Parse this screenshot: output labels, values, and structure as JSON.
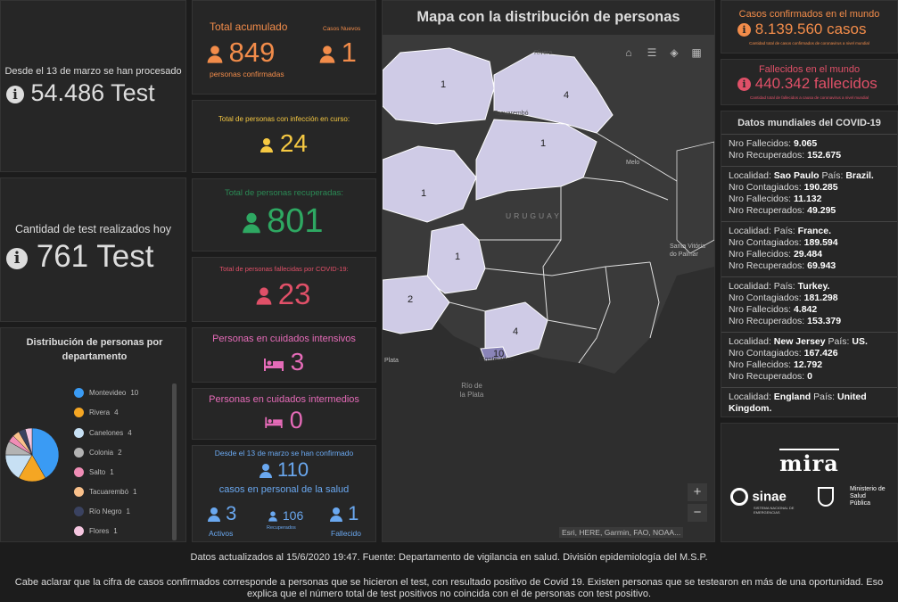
{
  "left": {
    "tests_since_label": "Desde el 13 de marzo se han procesado",
    "tests_since_value": "54.486 Test",
    "tests_today_label": "Cantidad de test realizados hoy",
    "tests_today_value": "761 Test",
    "dist_title": "Distribución de personas por departamento",
    "legend": [
      {
        "name": "Montevideo",
        "value": "10",
        "color": "#3a9bf4"
      },
      {
        "name": "Rivera",
        "value": "4",
        "color": "#f5a623"
      },
      {
        "name": "Canelones",
        "value": "4",
        "color": "#c7e0f4"
      },
      {
        "name": "Colonia",
        "value": "2",
        "color": "#b3b3b3"
      },
      {
        "name": "Salto",
        "value": "1",
        "color": "#f08db6"
      },
      {
        "name": "Tacuarembó",
        "value": "1",
        "color": "#f9c08a"
      },
      {
        "name": "Río Negro",
        "value": "1",
        "color": "#3a4260"
      },
      {
        "name": "Flores",
        "value": "1",
        "color": "#f5c6e0"
      }
    ]
  },
  "stats": {
    "total_label": "Total acumulado",
    "total_value": "849",
    "total_sub": "personas confirmadas",
    "new_label": "Casos Nuevos",
    "new_value": "1",
    "active_label": "Total de personas con infección en curso:",
    "active_value": "24",
    "recovered_label": "Total de personas recuperadas:",
    "recovered_value": "801",
    "deceased_label": "Total de personas fallecidas por COVID-19:",
    "deceased_value": "23",
    "icu_label": "Personas en cuidados intensivos",
    "icu_value": "3",
    "intermediate_label": "Personas en cuidados intermedios",
    "intermediate_value": "0",
    "health_header": "Desde el 13 de marzo se han confirmado",
    "health_value": "110",
    "health_sub": "casos en personal de la salud",
    "health_active_value": "3",
    "health_active_label": "Activos",
    "health_recovered_value": "106",
    "health_recovered_label": "Recuperados",
    "health_deceased_value": "1",
    "health_deceased_label": "Fallecido"
  },
  "map": {
    "title": "Mapa con la distribución de personas",
    "attribution": "Esri, HERE, Garmin, FAO, NOAA...",
    "labels": [
      "1",
      "4",
      "1",
      "1",
      "1",
      "2",
      "4",
      "10"
    ],
    "place_rivera": "Rivera",
    "place_tacuarembo": "Tacuarembó",
    "place_uruguay": "URUGUAY",
    "place_melo": "Melo",
    "place_santa": "Santa Vitória do Palmar",
    "place_montevideo": "Montevideo",
    "place_plata": "Plata",
    "place_rio": "Río de la Plata",
    "zoom_in": "+",
    "zoom_out": "−"
  },
  "world": {
    "confirmed_label": "Casos confirmados en el mundo",
    "confirmed_value": "8.139.560 casos",
    "confirmed_sub": "Cantidad total de casos confirmados de coronavirus a nivel mundial",
    "deaths_label": "Fallecidos en el mundo",
    "deaths_value": "440.342 fallecidos",
    "deaths_sub": "Cantidad total de fallecidos a causa de coronavirus a nivel mundial",
    "list_title": "Datos mundiales del COVID-19",
    "summary_deaths": "9.065",
    "summary_recovered": "152.675",
    "lbl_localidad": "Localidad:",
    "lbl_pais": "País:",
    "lbl_contagiados": "Nro Contagiados:",
    "lbl_fallecidos": "Nro Fallecidos:",
    "lbl_recuperados": "Nro Recuperados:",
    "entries": [
      {
        "loc": "Sao Paulo",
        "country": "Brazil.",
        "infected": "190.285",
        "deaths": "11.132",
        "recovered": "49.295"
      },
      {
        "loc": "",
        "country": "France.",
        "infected": "189.594",
        "deaths": "29.484",
        "recovered": "69.943"
      },
      {
        "loc": "",
        "country": "Turkey.",
        "infected": "181.298",
        "deaths": "4.842",
        "recovered": "153.379"
      },
      {
        "loc": "New Jersey",
        "country": "US.",
        "infected": "167.426",
        "deaths": "12.792",
        "recovered": "0"
      }
    ],
    "last_loc": "England",
    "last_country": "United Kingdom."
  },
  "logos": {
    "mira": "mira",
    "sinae": "sinae",
    "sinae_sub": "SISTEMA NACIONAL DE EMERGENCIAS",
    "msp": "Ministerio de Salud Pública"
  },
  "footer": {
    "update": "Datos actualizados al 15/6/2020 19:47. Fuente: Departamento de vigilancia en salud. División epidemiología del M.S.P.",
    "note": "Cabe aclarar que la cifra de casos confirmados corresponde a personas que se hicieron el test, con resultado positivo de Covid 19. Existen personas que se testearon en más de una oportunidad. Eso explica que el número total de test positivos no coincida con el de personas con test positivo."
  }
}
